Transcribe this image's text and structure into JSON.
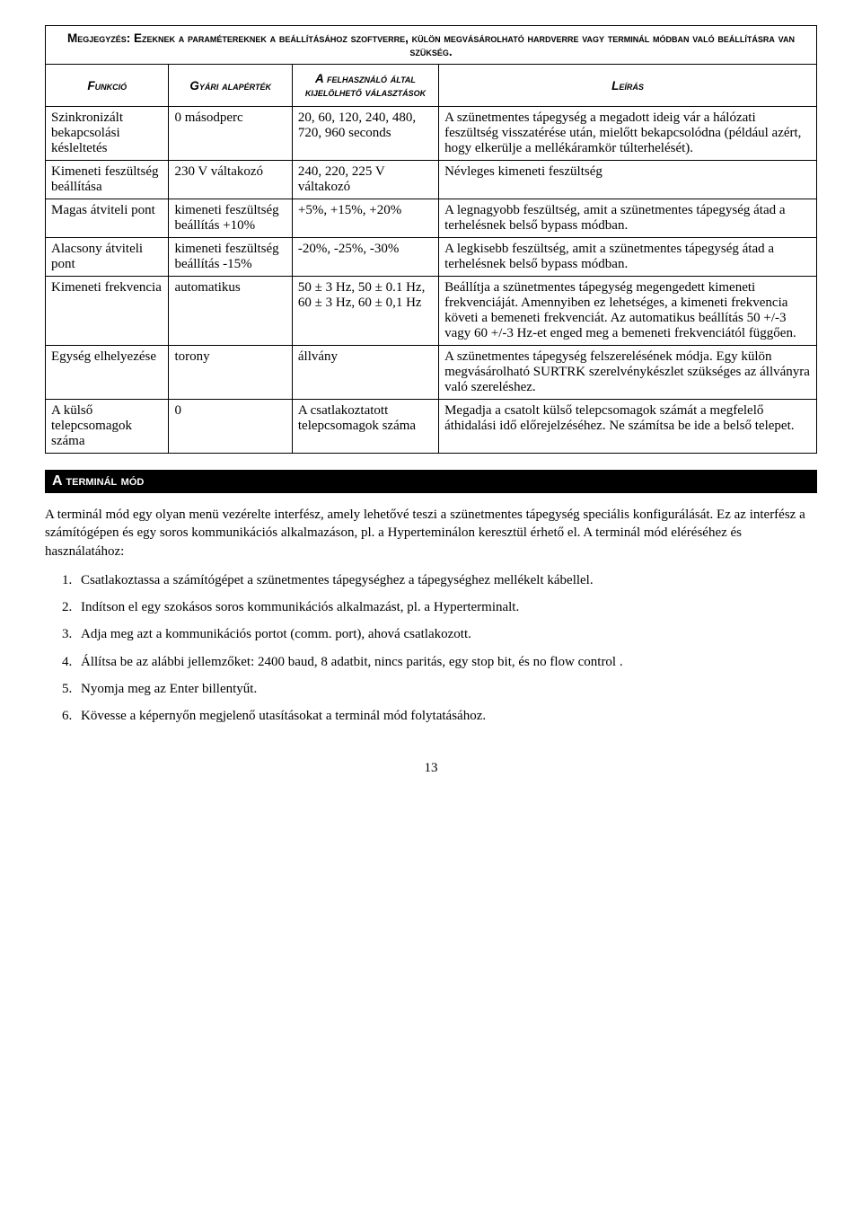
{
  "note": "Megjegyzés: Ezeknek a paramétereknek a beállításához szoftverre, külön megvásárolható hardverre vagy terminál módban való beállításra van szükség.",
  "headers": {
    "function": "Funkció",
    "default": "Gyári alapérték",
    "choices": "A felhasználó által kijelölhető választások",
    "description": "Leírás"
  },
  "rows": [
    {
      "func": "Szinkronizált bekapcsolási késleltetés",
      "def": "0 másodperc",
      "sel": "20, 60, 120, 240, 480, 720, 960 seconds",
      "desc": "A szünetmentes tápegység a megadott ideig vár a hálózati feszültség visszatérése után, mielőtt bekapcsolódna (például azért, hogy elkerülje a mellékáramkör túlterhelését)."
    },
    {
      "func": "Kimeneti feszültség beállítása",
      "def": "230 V váltakozó",
      "sel": "240, 220, 225 V váltakozó",
      "desc": "Névleges kimeneti feszültség"
    },
    {
      "func": "Magas átviteli pont",
      "def": "kimeneti feszültség beállítás +10%",
      "sel": "+5%, +15%, +20%",
      "desc": "A legnagyobb feszültség, amit a szünetmentes tápegység átad a terhelésnek belső bypass módban."
    },
    {
      "func": "Alacsony átviteli pont",
      "def": "kimeneti feszültség beállítás -15%",
      "sel": "-20%, -25%, -30%",
      "desc": "A legkisebb feszültség, amit a szünetmentes tápegység átad a terhelésnek belső bypass módban."
    },
    {
      "func": "Kimeneti frekvencia",
      "def": "automatikus",
      "sel": "50 ± 3 Hz, 50 ± 0.1 Hz, 60 ± 3 Hz, 60 ± 0,1 Hz",
      "desc": "Beállítja a szünetmentes tápegység megengedett kimeneti frekvenciáját. Amennyiben ez lehetséges, a kimeneti frekvencia követi a bemeneti frekvenciát. Az automatikus beállítás 50 +/-3 vagy 60 +/-3 Hz-et enged meg a bemeneti frekvenciától függően."
    },
    {
      "func": "Egység elhelyezése",
      "def": "torony",
      "sel": "állvány",
      "desc": "A szünetmentes tápegység felszerelésének módja. Egy külön megvásárolható SURTRK szerelvénykészlet szükséges az állványra való szereléshez."
    },
    {
      "func": "A külső telepcsomagok száma",
      "def": "0",
      "sel": "A csatlakoztatott telepcsomagok száma",
      "desc": "Megadja a csatolt külső telepcsomagok számát a megfelelő áthidalási idő előrejelzéséhez. Ne számítsa be ide a belső telepet."
    }
  ],
  "section_title": "A terminál mód",
  "intro": "A terminál mód egy olyan menü vezérelte interfész, amely lehetővé teszi a szünetmentes tápegység speciális konfigurálását. Ez az interfész a számítógépen és egy soros kommunikációs alkalmazáson, pl. a Hyperteminálon keresztül érhető el. A terminál mód eléréséhez és használatához:",
  "steps": [
    "Csatlakoztassa a számítógépet a szünetmentes tápegységhez a tápegységhez mellékelt kábellel.",
    "Indítson el egy szokásos soros kommunikációs alkalmazást, pl. a Hyperterminalt.",
    "Adja meg azt a kommunikációs portot (comm. port), ahová csatlakozott.",
    "Állítsa be az alábbi jellemzőket:  2400 baud, 8 adatbit, nincs paritás, egy stop bit, és no flow control .",
    "Nyomja meg az Enter billentyűt.",
    "Kövesse a képernyőn megjelenő utasításokat a terminál mód folytatásához."
  ],
  "page": "13"
}
